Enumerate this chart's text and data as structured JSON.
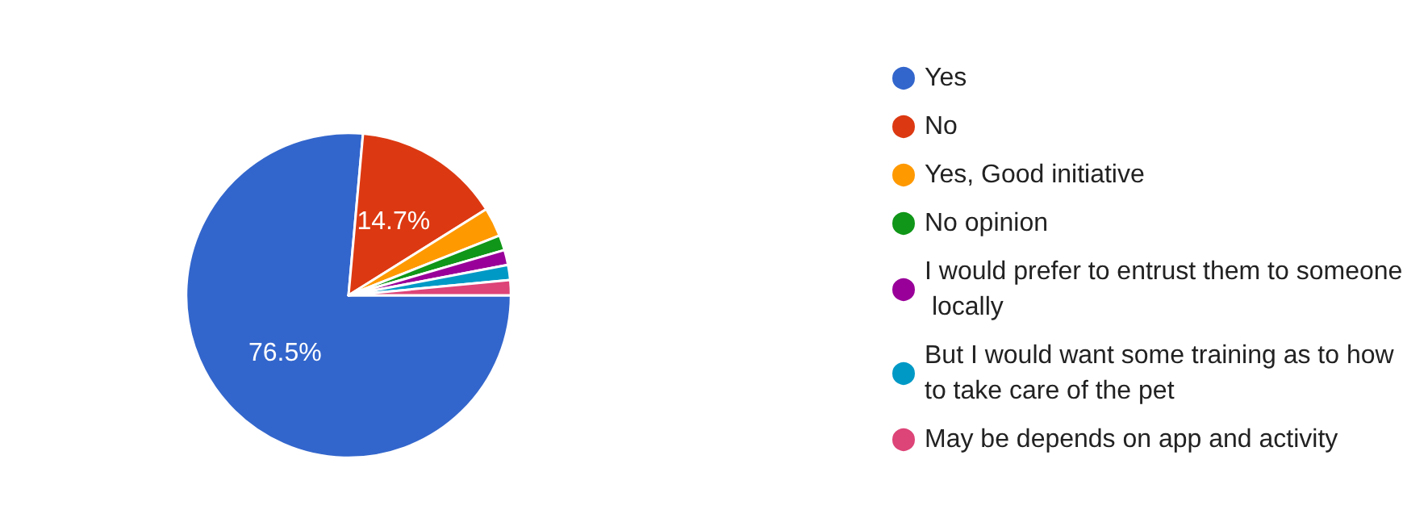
{
  "chart_data": {
    "type": "pie",
    "categories": [
      "Yes",
      "No",
      "Yes, Good initiative",
      "No opinion",
      "I would prefer to entrust them to someone locally",
      "But I would want some training as to how to take care of the pet",
      "May be depends on app and activity"
    ],
    "values": [
      76.5,
      14.7,
      2.9,
      1.5,
      1.5,
      1.5,
      1.5
    ],
    "colors": [
      "#3366cc",
      "#dc3912",
      "#ff9900",
      "#109618",
      "#990099",
      "#0099c6",
      "#dd4477"
    ],
    "value_labels": [
      "76.5%",
      "14.7%",
      null,
      null,
      null,
      null,
      null
    ],
    "legend": "right"
  }
}
